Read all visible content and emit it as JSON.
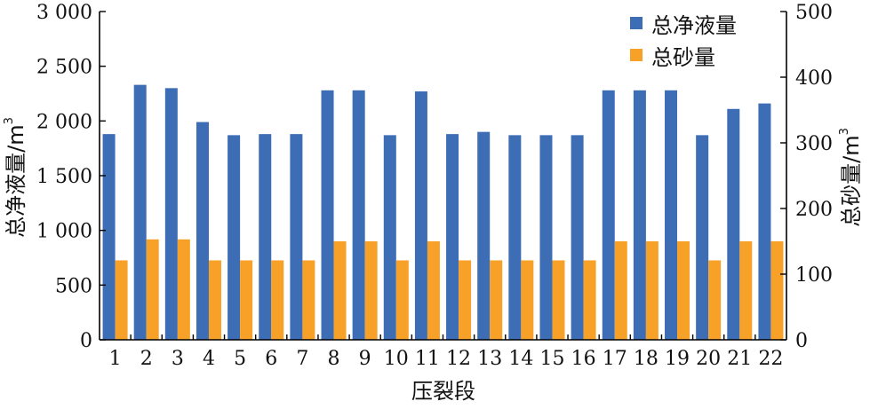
{
  "chart_data": {
    "type": "bar",
    "xlabel": "压裂段",
    "categories": [
      "1",
      "2",
      "3",
      "4",
      "5",
      "6",
      "7",
      "8",
      "9",
      "10",
      "11",
      "12",
      "13",
      "14",
      "15",
      "16",
      "17",
      "18",
      "19",
      "20",
      "21",
      "22"
    ],
    "y_left": {
      "label": "总净液量/m",
      "label_sup": "3",
      "ylim": [
        0,
        3000
      ],
      "ticks": [
        0,
        500,
        1000,
        1500,
        2000,
        2500,
        3000
      ],
      "tick_labels": [
        "0",
        "500",
        "1 000",
        "1 500",
        "2 000",
        "2 500",
        "3 000"
      ]
    },
    "y_right": {
      "label": "总砂量/m",
      "label_sup": "3",
      "ylim": [
        0,
        500
      ],
      "ticks": [
        0,
        100,
        200,
        300,
        400,
        500
      ],
      "tick_labels": [
        "0",
        "100",
        "200",
        "300",
        "400",
        "500"
      ]
    },
    "series": [
      {
        "name": "总净液量",
        "axis": "left",
        "color": "#3d6db5",
        "values": [
          1880,
          2330,
          2300,
          1990,
          1870,
          1880,
          1880,
          2280,
          2280,
          1870,
          2270,
          1880,
          1900,
          1870,
          1870,
          1870,
          2280,
          2280,
          2280,
          1870,
          2110,
          2160
        ]
      },
      {
        "name": "总砂量",
        "axis": "right",
        "color": "#f7a128",
        "values": [
          121,
          153,
          153,
          121,
          121,
          121,
          121,
          150,
          150,
          121,
          150,
          121,
          121,
          121,
          121,
          121,
          150,
          150,
          150,
          121,
          150,
          150
        ]
      }
    ],
    "legend": {
      "position": "top-right"
    },
    "grid": false
  }
}
